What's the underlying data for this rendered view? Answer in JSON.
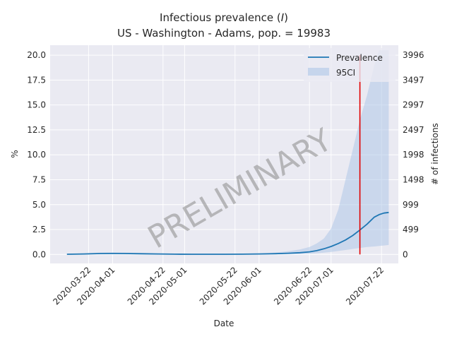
{
  "chart_data": {
    "type": "line",
    "title_line1": "Infectious prevalence (",
    "title_italic": "I",
    "title_line1_end": ")",
    "title_line2": "US - Washington - Adams, pop. = 19983",
    "xlabel": "Date",
    "ylabel": "%",
    "ylabel_right": "# of infections",
    "watermark": "PRELIMINARY",
    "grid": true,
    "legend_position": "top-right",
    "ylim": [
      -0.9,
      21.0
    ],
    "xlim": [
      "2020-03-06",
      "2020-07-29"
    ],
    "y_ticks": [
      "0.0",
      "2.5",
      "5.0",
      "7.5",
      "10.0",
      "12.5",
      "15.0",
      "17.5",
      "20.0"
    ],
    "y_tick_values": [
      0,
      2.5,
      5.0,
      7.5,
      10.0,
      12.5,
      15.0,
      17.5,
      20.0
    ],
    "y2_ticks": [
      "0",
      "499",
      "999",
      "1498",
      "1998",
      "2497",
      "2997",
      "3497",
      "3996"
    ],
    "x_ticks": [
      "2020-03-22",
      "2020-04-01",
      "2020-04-22",
      "2020-05-01",
      "2020-05-22",
      "2020-06-01",
      "2020-06-22",
      "2020-07-01",
      "2020-07-22"
    ],
    "vertical_line_date": "2020-07-13",
    "series": [
      {
        "name": "Prevalence",
        "color": "#1f77b4",
        "x": [
          "2020-03-13",
          "2020-03-20",
          "2020-03-27",
          "2020-04-01",
          "2020-04-06",
          "2020-04-13",
          "2020-04-20",
          "2020-04-27",
          "2020-05-04",
          "2020-05-11",
          "2020-05-18",
          "2020-05-25",
          "2020-06-01",
          "2020-06-08",
          "2020-06-13",
          "2020-06-18",
          "2020-06-22",
          "2020-06-25",
          "2020-06-28",
          "2020-07-01",
          "2020-07-04",
          "2020-07-07",
          "2020-07-10",
          "2020-07-13",
          "2020-07-16",
          "2020-07-19",
          "2020-07-21",
          "2020-07-23",
          "2020-07-25"
        ],
        "values": [
          0.02,
          0.05,
          0.09,
          0.1,
          0.09,
          0.07,
          0.05,
          0.03,
          0.02,
          0.02,
          0.02,
          0.03,
          0.05,
          0.08,
          0.12,
          0.18,
          0.26,
          0.38,
          0.57,
          0.8,
          1.1,
          1.45,
          1.9,
          2.45,
          3.05,
          3.75,
          4.0,
          4.15,
          4.22
        ]
      },
      {
        "name": "95CI",
        "color": "#aec7e8",
        "x": [
          "2020-03-13",
          "2020-03-20",
          "2020-03-27",
          "2020-04-01",
          "2020-04-06",
          "2020-04-13",
          "2020-04-20",
          "2020-04-27",
          "2020-05-04",
          "2020-05-11",
          "2020-05-18",
          "2020-05-25",
          "2020-06-01",
          "2020-06-08",
          "2020-06-13",
          "2020-06-18",
          "2020-06-22",
          "2020-06-25",
          "2020-06-28",
          "2020-07-01",
          "2020-07-04",
          "2020-07-07",
          "2020-07-10",
          "2020-07-13",
          "2020-07-16",
          "2020-07-19",
          "2020-07-21",
          "2020-07-23",
          "2020-07-25"
        ],
        "lower": [
          0.0,
          0.01,
          0.02,
          0.03,
          0.03,
          0.02,
          0.01,
          0.01,
          0.0,
          0.0,
          0.0,
          0.0,
          0.01,
          0.02,
          0.03,
          0.05,
          0.08,
          0.12,
          0.18,
          0.25,
          0.35,
          0.45,
          0.55,
          0.65,
          0.75,
          0.8,
          0.85,
          0.9,
          0.95
        ],
        "upper": [
          0.05,
          0.12,
          0.2,
          0.22,
          0.2,
          0.16,
          0.12,
          0.08,
          0.06,
          0.05,
          0.05,
          0.07,
          0.12,
          0.2,
          0.32,
          0.5,
          0.75,
          1.1,
          1.6,
          2.6,
          4.5,
          7.5,
          10.5,
          13.5,
          16.0,
          19.0,
          20.5,
          20.5,
          20.5
        ]
      }
    ]
  }
}
